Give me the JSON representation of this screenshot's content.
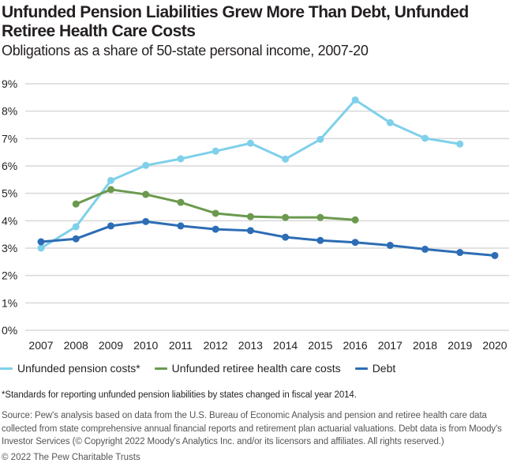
{
  "title": "Unfunded Pension Liabilities Grew More Than Debt, Unfunded Retiree Health Care Costs",
  "subtitle": "Obligations as a share of 50-state personal income, 2007-20",
  "note": "*Standards for reporting unfunded pension liabilities by states changed in fiscal year 2014.",
  "source": "Source: Pew's analysis based on data from the U.S. Bureau of Economic Analysis and pension and retiree health care data collected from state comprehensive annual financial reports and retirement plan actuarial valuations. Debt data is from Moody's Investor Services (© Copyright 2022 Moody's Analytics Inc. and/or its licensors and affiliates. All rights reserved.)",
  "copyright": "© 2022 The Pew Charitable Trusts",
  "colors": {
    "pension": "#7fd0ea",
    "health": "#6b9a4f",
    "debt": "#2d6db5",
    "grid": "#d9d9d9"
  },
  "chart_data": {
    "type": "line",
    "title": "Unfunded Pension Liabilities Grew More Than Debt, Unfunded Retiree Health Care Costs",
    "subtitle": "Obligations as a share of 50-state personal income, 2007-20",
    "xlabel": "",
    "ylabel": "",
    "x": [
      "2007",
      "2008",
      "2009",
      "2010",
      "2011",
      "2012",
      "2013",
      "2014",
      "2015",
      "2016",
      "2017",
      "2018",
      "2019",
      "2020"
    ],
    "ylim": [
      0,
      9
    ],
    "yticks": [
      "0%",
      "1%",
      "2%",
      "3%",
      "4%",
      "5%",
      "6%",
      "7%",
      "8%",
      "9%"
    ],
    "grid": true,
    "legend_position": "bottom",
    "series": [
      {
        "name": "Unfunded pension costs*",
        "color_key": "pension",
        "values": [
          3.0,
          3.78,
          5.47,
          6.02,
          6.26,
          6.54,
          6.83,
          6.25,
          6.97,
          8.41,
          7.58,
          7.01,
          6.8,
          null
        ]
      },
      {
        "name": "Unfunded retiree health care costs",
        "color_key": "health",
        "values": [
          null,
          4.61,
          5.14,
          4.96,
          4.67,
          4.27,
          4.15,
          4.12,
          4.12,
          4.03,
          null,
          null,
          null,
          null
        ]
      },
      {
        "name": "Debt",
        "color_key": "debt",
        "values": [
          3.23,
          3.34,
          3.81,
          3.97,
          3.81,
          3.69,
          3.64,
          3.4,
          3.28,
          3.21,
          3.1,
          2.96,
          2.84,
          2.73
        ]
      }
    ]
  }
}
